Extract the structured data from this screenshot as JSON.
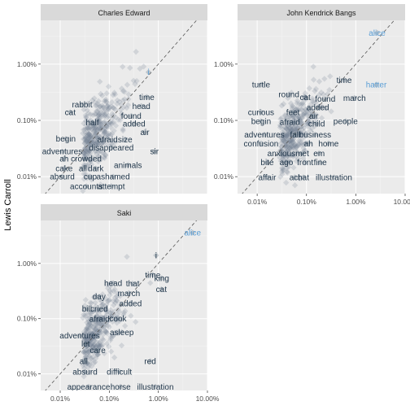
{
  "chart_data": {
    "type": "scatter",
    "xscale": "log10",
    "yscale": "log10",
    "xlim": [
      4e-05,
      0.1
    ],
    "ylim": [
      5e-05,
      0.06
    ],
    "x_ticks": [
      {
        "v": 0.0001,
        "label": "0.01%"
      },
      {
        "v": 0.001,
        "label": "0.10%"
      },
      {
        "v": 0.01,
        "label": "1.00%"
      },
      {
        "v": 0.1,
        "label": "10.00%"
      }
    ],
    "y_ticks": [
      {
        "v": 0.0001,
        "label": "0.01%"
      },
      {
        "v": 0.001,
        "label": "0.10%"
      },
      {
        "v": 0.01,
        "label": "1.00%"
      }
    ],
    "ylabel": "Lewis Carroll",
    "reference_line": "y = x (dashed)",
    "point_color": "#708090",
    "word_colors": {
      "low": "#1f3549",
      "high": "#5a9ed6"
    },
    "panels": [
      {
        "title": "Charles Edward",
        "words": [
          {
            "word": "i",
            "x": 0.0063,
            "y": 0.0072,
            "c": 1
          },
          {
            "word": "time",
            "x": 0.0058,
            "y": 0.0026,
            "c": 0
          },
          {
            "word": "rabbit",
            "x": 0.00028,
            "y": 0.0019,
            "c": 0
          },
          {
            "word": "head",
            "x": 0.0045,
            "y": 0.0018,
            "c": 0
          },
          {
            "word": "cat",
            "x": 0.00016,
            "y": 0.0014,
            "c": 0
          },
          {
            "word": "found",
            "x": 0.0028,
            "y": 0.0012,
            "c": 0
          },
          {
            "word": "half",
            "x": 0.00045,
            "y": 0.00092,
            "c": 0
          },
          {
            "word": "added",
            "x": 0.0032,
            "y": 0.00088,
            "c": 0
          },
          {
            "word": "air",
            "x": 0.0053,
            "y": 0.00062,
            "c": 0
          },
          {
            "word": "begin",
            "x": 0.00013,
            "y": 0.00047,
            "c": 0
          },
          {
            "word": "afraid",
            "x": 0.00092,
            "y": 0.00046,
            "c": 0
          },
          {
            "word": "size",
            "x": 0.0021,
            "y": 0.00046,
            "c": 0
          },
          {
            "word": "disappeared",
            "x": 0.0011,
            "y": 0.00033,
            "c": 0
          },
          {
            "word": "adventures",
            "x": 0.00011,
            "y": 0.00028,
            "c": 0
          },
          {
            "word": "sir",
            "x": 0.0083,
            "y": 0.00028,
            "c": 0
          },
          {
            "word": "ah",
            "x": 0.00012,
            "y": 0.00021,
            "c": 0
          },
          {
            "word": "crowded",
            "x": 0.00034,
            "y": 0.00021,
            "c": 0
          },
          {
            "word": "animals",
            "x": 0.0024,
            "y": 0.00016,
            "c": 0
          },
          {
            "word": "cake",
            "x": 0.00012,
            "y": 0.00014,
            "c": 0
          },
          {
            "word": "all",
            "x": 0.00029,
            "y": 0.00014,
            "c": 0
          },
          {
            "word": "dark",
            "x": 0.00053,
            "y": 0.00014,
            "c": 0
          },
          {
            "word": "absurd",
            "x": 0.00011,
            "y": 0.0001,
            "c": 0
          },
          {
            "word": "cup",
            "x": 0.00041,
            "y": 0.0001,
            "c": 0
          },
          {
            "word": "ashamed",
            "x": 0.0012,
            "y": 0.0001,
            "c": 0
          },
          {
            "word": "accounts",
            "x": 0.00034,
            "y": 6.75e-05,
            "c": 0
          },
          {
            "word": "attempt",
            "x": 0.0011,
            "y": 6.75e-05,
            "c": 0
          }
        ]
      },
      {
        "title": "John Kendrick Bangs",
        "words": [
          {
            "word": "alice",
            "x": 0.027,
            "y": 0.036,
            "c": 1
          },
          {
            "word": "hatter",
            "x": 0.026,
            "y": 0.0043,
            "c": 1
          },
          {
            "word": "time",
            "x": 0.0058,
            "y": 0.0052,
            "c": 0
          },
          {
            "word": "turtle",
            "x": 0.00012,
            "y": 0.0043,
            "c": 0
          },
          {
            "word": "round",
            "x": 0.00044,
            "y": 0.0029,
            "c": 0
          },
          {
            "word": "cat",
            "x": 0.00094,
            "y": 0.0026,
            "c": 0
          },
          {
            "word": "found",
            "x": 0.0024,
            "y": 0.0024,
            "c": 0
          },
          {
            "word": "march",
            "x": 0.0094,
            "y": 0.0025,
            "c": 0
          },
          {
            "word": "added",
            "x": 0.0017,
            "y": 0.0017,
            "c": 0
          },
          {
            "word": "curious",
            "x": 0.00012,
            "y": 0.0014,
            "c": 0
          },
          {
            "word": "feet",
            "x": 0.00053,
            "y": 0.0014,
            "c": 0
          },
          {
            "word": "air",
            "x": 0.0014,
            "y": 0.0012,
            "c": 0
          },
          {
            "word": "begin",
            "x": 0.00012,
            "y": 0.00097,
            "c": 0
          },
          {
            "word": "afraid",
            "x": 0.00046,
            "y": 0.00093,
            "c": 0
          },
          {
            "word": "child",
            "x": 0.0016,
            "y": 0.00088,
            "c": 0
          },
          {
            "word": "people",
            "x": 0.0062,
            "y": 0.00097,
            "c": 0
          },
          {
            "word": "adventures",
            "x": 0.00014,
            "y": 0.00056,
            "c": 0
          },
          {
            "word": "fall",
            "x": 0.00059,
            "y": 0.00056,
            "c": 0
          },
          {
            "word": "business",
            "x": 0.0015,
            "y": 0.00056,
            "c": 0
          },
          {
            "word": "confusion",
            "x": 0.00012,
            "y": 0.00039,
            "c": 0
          },
          {
            "word": "ah",
            "x": 0.0011,
            "y": 0.00039,
            "c": 0
          },
          {
            "word": "home",
            "x": 0.0028,
            "y": 0.00039,
            "c": 0
          },
          {
            "word": "anxious",
            "x": 0.00031,
            "y": 0.00026,
            "c": 0
          },
          {
            "word": "met",
            "x": 0.00082,
            "y": 0.00026,
            "c": 0
          },
          {
            "word": "em",
            "x": 0.0018,
            "y": 0.00026,
            "c": 0
          },
          {
            "word": "bite",
            "x": 0.00016,
            "y": 0.00018,
            "c": 0
          },
          {
            "word": "ago",
            "x": 0.00039,
            "y": 0.00018,
            "c": 0
          },
          {
            "word": "front",
            "x": 0.00094,
            "y": 0.00018,
            "c": 0
          },
          {
            "word": "fine",
            "x": 0.0019,
            "y": 0.00018,
            "c": 0
          },
          {
            "word": "affair",
            "x": 0.00016,
            "y": 9.75e-05,
            "c": 0
          },
          {
            "word": "act",
            "x": 0.00058,
            "y": 9.75e-05,
            "c": 0
          },
          {
            "word": "hat",
            "x": 0.00087,
            "y": 9.75e-05,
            "c": 0
          },
          {
            "word": "illustration",
            "x": 0.0036,
            "y": 9.75e-05,
            "c": 0
          }
        ]
      },
      {
        "title": "Saki",
        "words": [
          {
            "word": "alice",
            "x": 0.05,
            "y": 0.036,
            "c": 1
          },
          {
            "word": "i",
            "x": 0.009,
            "y": 0.014,
            "c": 0
          },
          {
            "word": "time",
            "x": 0.0077,
            "y": 0.0062,
            "c": 0
          },
          {
            "word": "king",
            "x": 0.0117,
            "y": 0.0054,
            "c": 0
          },
          {
            "word": "head",
            "x": 0.0012,
            "y": 0.0044,
            "c": 0
          },
          {
            "word": "that",
            "x": 0.003,
            "y": 0.0043,
            "c": 0
          },
          {
            "word": "cat",
            "x": 0.0115,
            "y": 0.0034,
            "c": 0
          },
          {
            "word": "march",
            "x": 0.0025,
            "y": 0.0029,
            "c": 0
          },
          {
            "word": "day",
            "x": 0.00062,
            "y": 0.0025,
            "c": 0
          },
          {
            "word": "added",
            "x": 0.0027,
            "y": 0.0019,
            "c": 0
          },
          {
            "word": "bill",
            "x": 0.00035,
            "y": 0.0015,
            "c": 0
          },
          {
            "word": "cried",
            "x": 0.00062,
            "y": 0.0015,
            "c": 0
          },
          {
            "word": "afraid",
            "x": 0.00063,
            "y": 0.00099,
            "c": 0
          },
          {
            "word": "cook",
            "x": 0.0015,
            "y": 0.001,
            "c": 0
          },
          {
            "word": "asleep",
            "x": 0.0018,
            "y": 0.00057,
            "c": 0
          },
          {
            "word": "adventures",
            "x": 0.00025,
            "y": 0.00049,
            "c": 0
          },
          {
            "word": "let",
            "x": 0.00033,
            "y": 0.00035,
            "c": 0
          },
          {
            "word": "care",
            "x": 0.00058,
            "y": 0.00027,
            "c": 0
          },
          {
            "word": "red",
            "x": 0.0068,
            "y": 0.00017,
            "c": 0
          },
          {
            "word": "all",
            "x": 0.0003,
            "y": 0.00017,
            "c": 0
          },
          {
            "word": "absurd",
            "x": 0.00032,
            "y": 0.00011,
            "c": 0
          },
          {
            "word": "difficult",
            "x": 0.0016,
            "y": 0.00011,
            "c": 0
          },
          {
            "word": "appearance",
            "x": 0.00038,
            "y": 5.85e-05,
            "c": 0
          },
          {
            "word": "horse",
            "x": 0.0017,
            "y": 5.85e-05,
            "c": 0
          },
          {
            "word": "illustration",
            "x": 0.0087,
            "y": 5.85e-05,
            "c": 0
          }
        ]
      }
    ]
  }
}
